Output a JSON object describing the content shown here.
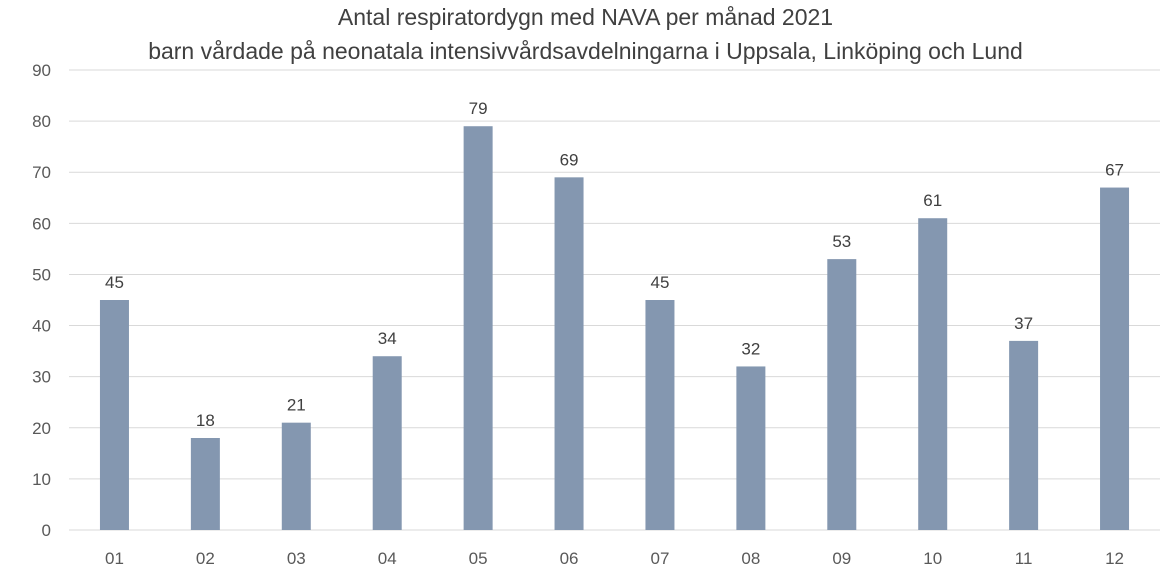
{
  "colors": {
    "bar": "#8497b0",
    "grid": "#d9d9d9",
    "text": "#404040"
  },
  "chart_data": {
    "type": "bar",
    "title": "Antal respiratordygn med NAVA per månad 2021",
    "subtitle": "barn vårdade på neonatala intensivvårdsavdelningarna i Uppsala, Linköping och Lund",
    "xlabel": "",
    "ylabel": "",
    "categories": [
      "01",
      "02",
      "03",
      "04",
      "05",
      "06",
      "07",
      "08",
      "09",
      "10",
      "11",
      "12"
    ],
    "values": [
      45,
      18,
      21,
      34,
      79,
      69,
      45,
      32,
      53,
      61,
      37,
      67
    ],
    "ylim": [
      0,
      90
    ],
    "yticks": [
      0,
      10,
      20,
      30,
      40,
      50,
      60,
      70,
      80,
      90
    ],
    "grid": true,
    "legend": "none",
    "data_labels": true
  }
}
